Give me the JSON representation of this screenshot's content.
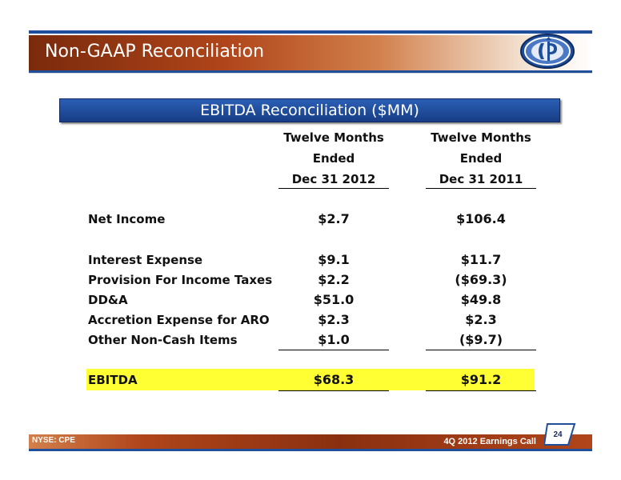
{
  "slide": {
    "title": "Non-GAAP Reconciliation",
    "section_title": "EBITDA Reconciliation ($MM)"
  },
  "columns": [
    {
      "line1": "Twelve Months",
      "line2": "Ended",
      "line3": "Dec 31 2012"
    },
    {
      "line1": "Twelve Months",
      "line2": "Ended",
      "line3": "Dec 31 2011"
    }
  ],
  "rows": {
    "net_income": {
      "label": "Net Income",
      "v2012": "$2.7",
      "v2011": "$106.4"
    },
    "interest": {
      "label": "Interest Expense",
      "v2012": "$9.1",
      "v2011": "$11.7"
    },
    "taxes": {
      "label": "Provision For Income Taxes",
      "v2012": "$2.2",
      "v2011": "($69.3)"
    },
    "dda": {
      "label": "DD&A",
      "v2012": "$51.0",
      "v2011": "$49.8"
    },
    "aro": {
      "label": "Accretion Expense for ARO",
      "v2012": "$2.3",
      "v2011": "$2.3"
    },
    "noncash": {
      "label": "Other Non-Cash Items",
      "v2012": "$1.0",
      "v2011": "($9.7)"
    },
    "ebitda": {
      "label": "EBITDA",
      "v2012": "$68.3",
      "v2011": "$91.2"
    }
  },
  "footer": {
    "ticker": "NYSE: CPE",
    "event": "4Q 2012 Earnings Call",
    "page_number": "24"
  },
  "colors": {
    "header_accent": "#b0451a",
    "section_blue": "#1f4e9b",
    "highlight": "#ffff33"
  },
  "icons": {
    "logo": "company-logo-icon"
  }
}
